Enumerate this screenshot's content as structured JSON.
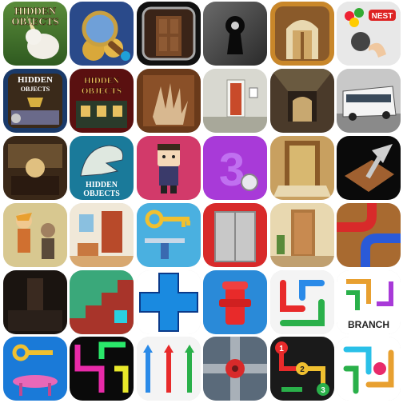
{
  "icons": [
    {
      "row": 0,
      "col": 0,
      "name": "hidden-objects-unicorn-icon",
      "text": [
        "HIDDEN",
        "OBJECTS"
      ]
    },
    {
      "row": 0,
      "col": 1,
      "name": "magnifier-coins-icon"
    },
    {
      "row": 0,
      "col": 2,
      "name": "wooden-door-frame-icon"
    },
    {
      "row": 0,
      "col": 3,
      "name": "keyhole-icon"
    },
    {
      "row": 0,
      "col": 4,
      "name": "archway-door-icon"
    },
    {
      "row": 0,
      "col": 5,
      "name": "candy-tap-icon",
      "text": [
        "NEST"
      ]
    },
    {
      "row": 1,
      "col": 0,
      "name": "hidden-objects-chandelier-icon",
      "text": [
        "HIDDEN",
        "OBJECTS"
      ]
    },
    {
      "row": 1,
      "col": 1,
      "name": "hidden-objects-mansion-icon",
      "text": [
        "HIDDEN",
        "OBJECTS"
      ]
    },
    {
      "row": 1,
      "col": 2,
      "name": "claw-hand-icon"
    },
    {
      "row": 1,
      "col": 3,
      "name": "white-room-door-icon"
    },
    {
      "row": 1,
      "col": 4,
      "name": "dark-corridor-icon"
    },
    {
      "row": 1,
      "col": 5,
      "name": "white-bus-icon"
    },
    {
      "row": 2,
      "col": 0,
      "name": "sepia-mansion-icon"
    },
    {
      "row": 2,
      "col": 1,
      "name": "hidden-objects-dinosaur-icon",
      "text": [
        "HIDDEN",
        "OBJECTS"
      ]
    },
    {
      "row": 2,
      "col": 2,
      "name": "cartoon-boy-icon"
    },
    {
      "row": 2,
      "col": 3,
      "name": "number-three-icon",
      "text": [
        "3"
      ]
    },
    {
      "row": 2,
      "col": 4,
      "name": "doorway-mat-icon"
    },
    {
      "row": 2,
      "col": 5,
      "name": "pen-box-icon"
    },
    {
      "row": 3,
      "col": 0,
      "name": "cartoon-characters-icon"
    },
    {
      "row": 3,
      "col": 1,
      "name": "red-door-room-icon"
    },
    {
      "row": 3,
      "col": 2,
      "name": "golden-key-office-icon"
    },
    {
      "row": 3,
      "col": 3,
      "name": "elevator-doors-icon"
    },
    {
      "row": 3,
      "col": 4,
      "name": "beige-room-door-icon"
    },
    {
      "row": 3,
      "col": 5,
      "name": "pipes-puzzle-icon"
    },
    {
      "row": 4,
      "col": 0,
      "name": "dark-room-icon"
    },
    {
      "row": 4,
      "col": 1,
      "name": "green-staircase-icon"
    },
    {
      "row": 4,
      "col": 2,
      "name": "blue-cross-pipe-icon"
    },
    {
      "row": 4,
      "col": 3,
      "name": "fire-hydrant-icon"
    },
    {
      "row": 4,
      "col": 4,
      "name": "color-lines-icon"
    },
    {
      "row": 4,
      "col": 5,
      "name": "branch-lines-icon",
      "text": [
        "BRANCH"
      ]
    },
    {
      "row": 5,
      "col": 0,
      "name": "key-pink-table-icon"
    },
    {
      "row": 5,
      "col": 1,
      "name": "neon-lines-icon"
    },
    {
      "row": 5,
      "col": 2,
      "name": "house-arrows-icon"
    },
    {
      "row": 5,
      "col": 3,
      "name": "metal-pipe-valve-icon"
    },
    {
      "row": 5,
      "col": 4,
      "name": "numbered-flow-icon",
      "text": [
        "1",
        "2",
        "3"
      ]
    },
    {
      "row": 5,
      "col": 5,
      "name": "pastel-lines-icon"
    }
  ]
}
